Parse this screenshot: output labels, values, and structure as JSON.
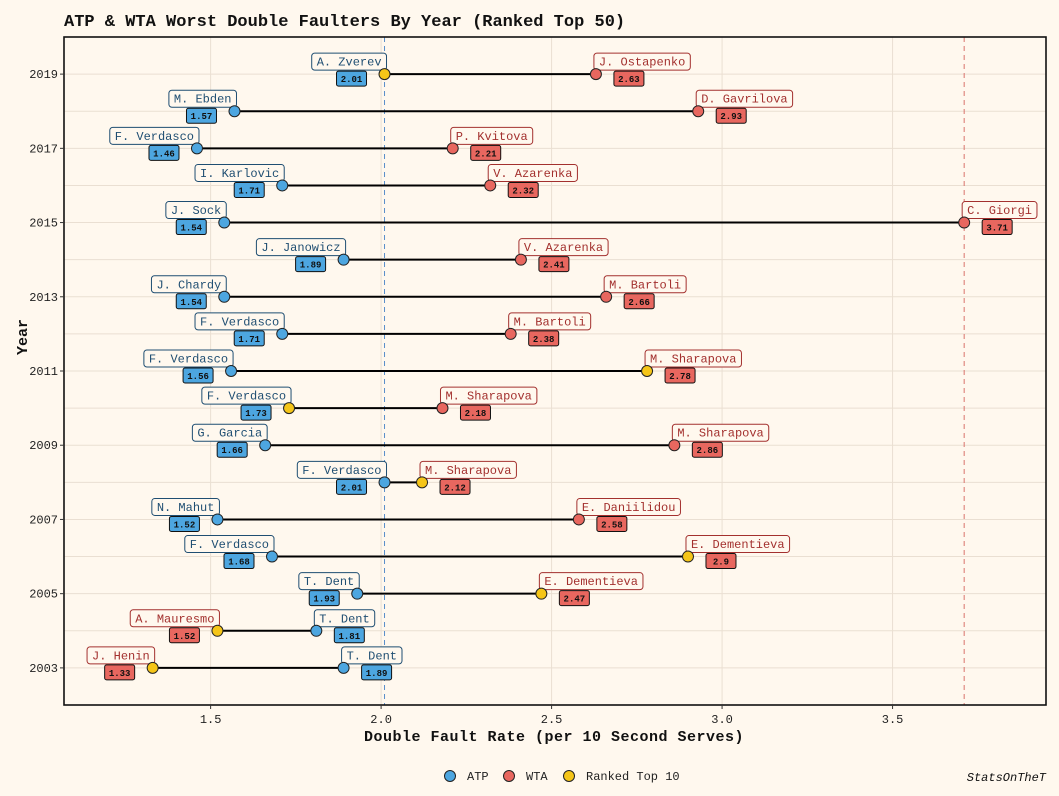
{
  "chart_data": {
    "type": "dumbbell",
    "title": "ATP & WTA Worst Double Faulters By Year (Ranked Top 50)",
    "xlabel": "Double Fault Rate (per 10 Second Serves)",
    "ylabel": "Year",
    "xlim": [
      1.07,
      3.95
    ],
    "xticks": [
      1.5,
      2.0,
      2.5,
      3.0,
      3.5
    ],
    "xtick_labels": [
      "1.5",
      "2.0",
      "2.5",
      "3.0",
      "3.5"
    ],
    "ylim": [
      2002,
      2020
    ],
    "yticks": [
      2003,
      2005,
      2007,
      2009,
      2011,
      2013,
      2015,
      2017,
      2019
    ],
    "ytick_labels": [
      "2003",
      "2005",
      "2007",
      "2009",
      "2011",
      "2013",
      "2015",
      "2017",
      "2019"
    ],
    "reference_lines": [
      {
        "series": "ATP",
        "value": 2.01,
        "color": "#5b8fc9"
      },
      {
        "series": "WTA",
        "value": 3.71,
        "color": "#d9736c"
      }
    ],
    "legend_position": "bottom",
    "legend": [
      {
        "label": "ATP",
        "color": "#4da6e0"
      },
      {
        "label": "WTA",
        "color": "#e8675f"
      },
      {
        "label": "Ranked Top 10",
        "color": "#f5c518"
      }
    ],
    "years": [
      {
        "year": 2019,
        "atp": {
          "name": "A. Zverev",
          "rate": 2.01,
          "label": "2.01",
          "top10": true
        },
        "wta": {
          "name": "J. Ostapenko",
          "rate": 2.63,
          "label": "2.63",
          "top10": false
        }
      },
      {
        "year": 2018,
        "atp": {
          "name": "M. Ebden",
          "rate": 1.57,
          "label": "1.57",
          "top10": false
        },
        "wta": {
          "name": "D. Gavrilova",
          "rate": 2.93,
          "label": "2.93",
          "top10": false
        }
      },
      {
        "year": 2017,
        "atp": {
          "name": "F. Verdasco",
          "rate": 1.46,
          "label": "1.46",
          "top10": false
        },
        "wta": {
          "name": "P. Kvitova",
          "rate": 2.21,
          "label": "2.21",
          "top10": false
        }
      },
      {
        "year": 2016,
        "atp": {
          "name": "I. Karlovic",
          "rate": 1.71,
          "label": "1.71",
          "top10": false
        },
        "wta": {
          "name": "V. Azarenka",
          "rate": 2.32,
          "label": "2.32",
          "top10": false
        }
      },
      {
        "year": 2015,
        "atp": {
          "name": "J. Sock",
          "rate": 1.54,
          "label": "1.54",
          "top10": false
        },
        "wta": {
          "name": "C. Giorgi",
          "rate": 3.71,
          "label": "3.71",
          "top10": false
        }
      },
      {
        "year": 2014,
        "atp": {
          "name": "J. Janowicz",
          "rate": 1.89,
          "label": "1.89",
          "top10": false
        },
        "wta": {
          "name": "V. Azarenka",
          "rate": 2.41,
          "label": "2.41",
          "top10": false
        }
      },
      {
        "year": 2013,
        "atp": {
          "name": "J. Chardy",
          "rate": 1.54,
          "label": "1.54",
          "top10": false
        },
        "wta": {
          "name": "M. Bartoli",
          "rate": 2.66,
          "label": "2.66",
          "top10": false
        }
      },
      {
        "year": 2012,
        "atp": {
          "name": "F. Verdasco",
          "rate": 1.71,
          "label": "1.71",
          "top10": false
        },
        "wta": {
          "name": "M. Bartoli",
          "rate": 2.38,
          "label": "2.38",
          "top10": false
        }
      },
      {
        "year": 2011,
        "atp": {
          "name": "F. Verdasco",
          "rate": 1.56,
          "label": "1.56",
          "top10": false
        },
        "wta": {
          "name": "M. Sharapova",
          "rate": 2.78,
          "label": "2.78",
          "top10": true
        }
      },
      {
        "year": 2010,
        "atp": {
          "name": "F. Verdasco",
          "rate": 1.73,
          "label": "1.73",
          "top10": true
        },
        "wta": {
          "name": "M. Sharapova",
          "rate": 2.18,
          "label": "2.18",
          "top10": false
        }
      },
      {
        "year": 2009,
        "atp": {
          "name": "G. Garcia",
          "rate": 1.66,
          "label": "1.66",
          "top10": false
        },
        "wta": {
          "name": "M. Sharapova",
          "rate": 2.86,
          "label": "2.86",
          "top10": false
        }
      },
      {
        "year": 2008,
        "atp": {
          "name": "F. Verdasco",
          "rate": 2.01,
          "label": "2.01",
          "top10": false
        },
        "wta": {
          "name": "M. Sharapova",
          "rate": 2.12,
          "label": "2.12",
          "top10": true
        }
      },
      {
        "year": 2007,
        "atp": {
          "name": "N. Mahut",
          "rate": 1.52,
          "label": "1.52",
          "top10": false
        },
        "wta": {
          "name": "E. Daniilidou",
          "rate": 2.58,
          "label": "2.58",
          "top10": false
        }
      },
      {
        "year": 2006,
        "atp": {
          "name": "F. Verdasco",
          "rate": 1.68,
          "label": "1.68",
          "top10": false
        },
        "wta": {
          "name": "E. Dementieva",
          "rate": 2.9,
          "label": "2.9",
          "top10": true
        }
      },
      {
        "year": 2005,
        "atp": {
          "name": "T. Dent",
          "rate": 1.93,
          "label": "1.93",
          "top10": false
        },
        "wta": {
          "name": "E. Dementieva",
          "rate": 2.47,
          "label": "2.47",
          "top10": true
        }
      },
      {
        "year": 2004,
        "atp": {
          "name": "T. Dent",
          "rate": 1.81,
          "label": "1.81",
          "top10": false
        },
        "wta": {
          "name": "A. Mauresmo",
          "rate": 1.52,
          "label": "1.52",
          "top10": true
        }
      },
      {
        "year": 2003,
        "atp": {
          "name": "T. Dent",
          "rate": 1.89,
          "label": "1.89",
          "top10": false
        },
        "wta": {
          "name": "J. Henin",
          "rate": 1.33,
          "label": "1.33",
          "top10": true
        }
      }
    ],
    "caption": "StatsOnTheT"
  },
  "colors": {
    "background": "#fff8ee",
    "grid": "#eadfd2",
    "atp": "#4da6e0",
    "atp_text": "#1f4e72",
    "wta": "#e8675f",
    "wta_text": "#a3302e",
    "top10": "#f5c518",
    "segment": "#000000"
  }
}
